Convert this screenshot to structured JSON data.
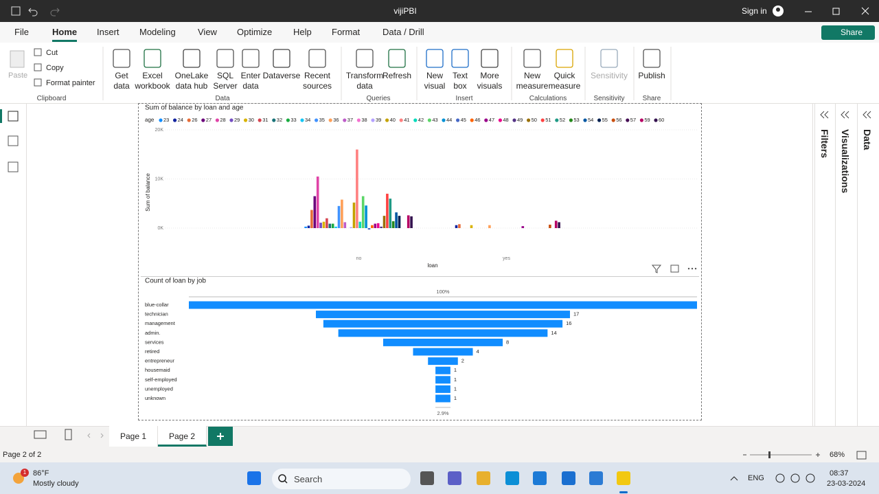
{
  "window": {
    "title": "vijiPBI",
    "sign_in": "Sign in"
  },
  "menu": [
    "File",
    "Home",
    "Insert",
    "Modeling",
    "View",
    "Optimize",
    "Help",
    "Format",
    "Data / Drill"
  ],
  "share": "Share",
  "ribbon": [
    {
      "label": "Clipboard",
      "items": [
        "Paste",
        "Cut",
        "Copy",
        "Format painter"
      ]
    },
    {
      "label": "Data",
      "items": [
        "Get data",
        "Excel workbook",
        "OneLake data hub",
        "SQL Server",
        "Enter data",
        "Dataverse",
        "Recent sources"
      ]
    },
    {
      "label": "Queries",
      "items": [
        "Transform data",
        "Refresh"
      ]
    },
    {
      "label": "Insert",
      "items": [
        "New visual",
        "Text box",
        "More visuals"
      ]
    },
    {
      "label": "Calculations",
      "items": [
        "New measure",
        "Quick measure"
      ]
    },
    {
      "label": "Sensitivity",
      "items": [
        "Sensitivity"
      ]
    },
    {
      "label": "Share",
      "items": [
        "Publish"
      ]
    }
  ],
  "panes": [
    "Filters",
    "Visualizations",
    "Data"
  ],
  "pages": [
    "Page 1",
    "Page 2"
  ],
  "status": {
    "page": "Page 2 of 2",
    "zoom": "68%"
  },
  "taskbar": {
    "badge": "1",
    "temp": "86°F",
    "weather": "Mostly cloudy",
    "search": "Search",
    "lang": "ENG",
    "time": "08:37",
    "date": "23-03-2024"
  },
  "chart_data": [
    {
      "type": "bar",
      "title": "Sum of balance by loan and age",
      "legend_title": "age",
      "x_label": "loan",
      "y_label": "Sum of balance",
      "categories": [
        "no",
        "yes"
      ],
      "ylim": [
        -2000,
        20000
      ],
      "yticks": [
        {
          "value": 0,
          "label": "0K"
        },
        {
          "value": 10000,
          "label": "10K"
        },
        {
          "value": 20000,
          "label": "20K"
        }
      ],
      "grid": true,
      "series": [
        {
          "name": "23",
          "color": "#118DFF",
          "values": [
            300,
            null
          ]
        },
        {
          "name": "24",
          "color": "#12239E",
          "values": [
            500,
            600
          ]
        },
        {
          "name": "26",
          "color": "#E66C37",
          "values": [
            3700,
            800
          ]
        },
        {
          "name": "27",
          "color": "#6B007B",
          "values": [
            6500,
            null
          ]
        },
        {
          "name": "28",
          "color": "#E044A7",
          "values": [
            10500,
            null
          ]
        },
        {
          "name": "29",
          "color": "#744EC2",
          "values": [
            1100,
            null
          ]
        },
        {
          "name": "30",
          "color": "#D9B300",
          "values": [
            1300,
            600
          ]
        },
        {
          "name": "31",
          "color": "#D64550",
          "values": [
            2000,
            null
          ]
        },
        {
          "name": "32",
          "color": "#197278",
          "values": [
            900,
            null
          ]
        },
        {
          "name": "33",
          "color": "#1AAB40",
          "values": [
            900,
            null
          ]
        },
        {
          "name": "34",
          "color": "#15C6F4",
          "values": [
            300,
            null
          ]
        },
        {
          "name": "35",
          "color": "#4092FF",
          "values": [
            4500,
            null
          ]
        },
        {
          "name": "36",
          "color": "#FFA058",
          "values": [
            5800,
            600
          ]
        },
        {
          "name": "37",
          "color": "#BE5DC9",
          "values": [
            1200,
            null
          ]
        },
        {
          "name": "38",
          "color": "#F472D0",
          "values": [
            null,
            null
          ]
        },
        {
          "name": "39",
          "color": "#B5A1FF",
          "values": [
            200,
            null
          ]
        },
        {
          "name": "40",
          "color": "#C4A200",
          "values": [
            5200,
            null
          ]
        },
        {
          "name": "41",
          "color": "#FF8080",
          "values": [
            16000,
            null
          ]
        },
        {
          "name": "42",
          "color": "#00DBBC",
          "values": [
            1300,
            null
          ]
        },
        {
          "name": "43",
          "color": "#5BD667",
          "values": [
            6500,
            null
          ]
        },
        {
          "name": "44",
          "color": "#0091D5",
          "values": [
            4600,
            null
          ]
        },
        {
          "name": "45",
          "color": "#4668C5",
          "values": [
            -300,
            null
          ]
        },
        {
          "name": "46",
          "color": "#FF6300",
          "values": [
            600,
            null
          ]
        },
        {
          "name": "47",
          "color": "#99008A",
          "values": [
            900,
            400
          ]
        },
        {
          "name": "48",
          "color": "#EC008C",
          "values": [
            1000,
            null
          ]
        },
        {
          "name": "49",
          "color": "#533285",
          "values": [
            300,
            null
          ]
        },
        {
          "name": "50",
          "color": "#99700A",
          "values": [
            2500,
            null
          ]
        },
        {
          "name": "51",
          "color": "#FF4141",
          "values": [
            7000,
            null
          ]
        },
        {
          "name": "52",
          "color": "#1F9A85",
          "values": [
            6000,
            null
          ]
        },
        {
          "name": "53",
          "color": "#25891C",
          "values": [
            1400,
            null
          ]
        },
        {
          "name": "54",
          "color": "#0057A2",
          "values": [
            3200,
            null
          ]
        },
        {
          "name": "55",
          "color": "#002050",
          "values": [
            2500,
            null
          ]
        },
        {
          "name": "56",
          "color": "#C94F0F",
          "values": [
            null,
            700
          ]
        },
        {
          "name": "57",
          "color": "#450F54",
          "values": [
            null,
            null
          ]
        },
        {
          "name": "59",
          "color": "#B60064",
          "values": [
            2600,
            1500
          ]
        },
        {
          "name": "60",
          "color": "#34124F",
          "values": [
            2400,
            1200
          ]
        }
      ]
    },
    {
      "type": "funnel",
      "title": "Count of loan by job",
      "color": "#118DFF",
      "top_label": "100%",
      "bottom_label": "2.9%",
      "categories": [
        "blue-collar",
        "technician",
        "management",
        "admin.",
        "services",
        "retired",
        "entrepreneur",
        "housemaid",
        "self-employed",
        "unemployed",
        "unknown"
      ],
      "values": [
        34,
        17,
        16,
        14,
        8,
        4,
        2,
        1,
        1,
        1,
        1
      ]
    }
  ]
}
